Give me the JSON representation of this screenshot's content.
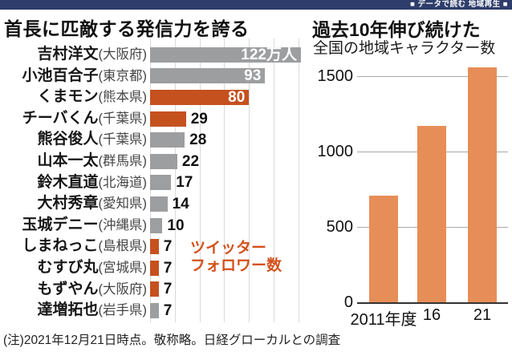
{
  "header": {
    "badge_text": "■ データで読む 地域再生 ■",
    "bar_color": "#2e3d6b"
  },
  "note": "(注)2021年12月21日時点。敬称略。日経グローカルとの調査",
  "chart_data": [
    {
      "type": "bar",
      "orientation": "horizontal",
      "title": "首長に匹敵する発信力を誇る",
      "legend_lines": [
        "ツイッター",
        "フォロワー数"
      ],
      "unit": "万人",
      "xlim": [
        0,
        124
      ],
      "grid_interval": 20,
      "rows": [
        {
          "name": "吉村洋文",
          "region": "(大阪府)",
          "value": 122,
          "label": "122万人",
          "group": "governor"
        },
        {
          "name": "小池百合子",
          "region": "(東京都)",
          "value": 93,
          "label": "93",
          "group": "governor"
        },
        {
          "name": "くまモン",
          "region": "(熊本県)",
          "value": 80,
          "label": "80",
          "group": "character"
        },
        {
          "name": "チーバくん",
          "region": "(千葉県)",
          "value": 29,
          "label": "29",
          "group": "character"
        },
        {
          "name": "熊谷俊人",
          "region": "(千葉県)",
          "value": 28,
          "label": "28",
          "group": "governor"
        },
        {
          "name": "山本一太",
          "region": "(群馬県)",
          "value": 22,
          "label": "22",
          "group": "governor"
        },
        {
          "name": "鈴木直道",
          "region": "(北海道)",
          "value": 17,
          "label": "17",
          "group": "governor"
        },
        {
          "name": "大村秀章",
          "region": "(愛知県)",
          "value": 14,
          "label": "14",
          "group": "governor"
        },
        {
          "name": "玉城デニー",
          "region": "(沖縄県)",
          "value": 10,
          "label": "10",
          "group": "governor"
        },
        {
          "name": "しまねっこ",
          "region": "(島根県)",
          "value": 7,
          "label": "7",
          "group": "character"
        },
        {
          "name": "むすび丸",
          "region": "(宮城県)",
          "value": 7,
          "label": "7",
          "group": "character"
        },
        {
          "name": "もずやん",
          "region": "(大阪府)",
          "value": 7,
          "label": "7",
          "group": "character"
        },
        {
          "name": "達増拓也",
          "region": "(岩手県)",
          "value": 7,
          "label": "7",
          "group": "governor"
        }
      ],
      "colors": {
        "governor": "#9d9ea0",
        "character": "#c5511f",
        "legend": "#d4511c"
      }
    },
    {
      "type": "bar",
      "orientation": "vertical",
      "title": "過去10年伸び続けた",
      "subtitle": "全国の地域キャラクター数",
      "categories": [
        "2011年度",
        "16",
        "21"
      ],
      "values": [
        710,
        1170,
        1560
      ],
      "yticks": [
        0,
        500,
        1000,
        1500
      ],
      "ylim": [
        0,
        1600
      ],
      "bar_color": "#e78e58",
      "grid": true,
      "legend_position": "none"
    }
  ]
}
